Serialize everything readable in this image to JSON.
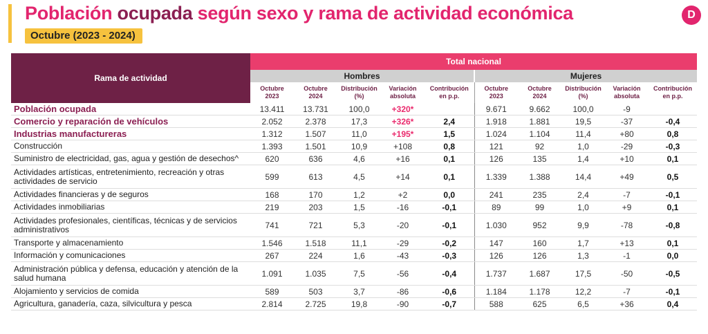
{
  "header": {
    "title_part1": "Población",
    "title_part2": "ocupada",
    "title_part3": "según sexo y rama de actividad económica",
    "subtitle": "Octubre (2023 - 2024)",
    "logo_letter": "D"
  },
  "table": {
    "rama_header": "Rama de actividad",
    "total_header": "Total nacional",
    "hombres_header": "Hombres",
    "mujeres_header": "Mujeres",
    "columns": [
      "Octubre 2023",
      "Octubre 2024",
      "Distribución (%)",
      "Variación absoluta",
      "Contribución en p.p.",
      "Octubre 2023",
      "Octubre 2024",
      "Distribución (%)",
      "Variación absoluta",
      "Contribución en p.p."
    ],
    "rows": [
      {
        "label": "Población ocupada",
        "h": [
          "13.411",
          "13.731",
          "100,0",
          "+320*",
          ""
        ],
        "m": [
          "9.671",
          "9.662",
          "100,0",
          "-9",
          ""
        ]
      },
      {
        "label": "Comercio y reparación de vehículos",
        "h": [
          "2.052",
          "2.378",
          "17,3",
          "+326*",
          "2,4"
        ],
        "m": [
          "1.918",
          "1.881",
          "19,5",
          "-37",
          "-0,4"
        ]
      },
      {
        "label": "Industrias manufactureras",
        "h": [
          "1.312",
          "1.507",
          "11,0",
          "+195*",
          "1,5"
        ],
        "m": [
          "1.024",
          "1.104",
          "11,4",
          "+80",
          "0,8"
        ]
      },
      {
        "label": "Construcción",
        "h": [
          "1.393",
          "1.501",
          "10,9",
          "+108",
          "0,8"
        ],
        "m": [
          "121",
          "92",
          "1,0",
          "-29",
          "-0,3"
        ]
      },
      {
        "label": "Suministro de electricidad, gas, agua y gestión de desechos^",
        "h": [
          "620",
          "636",
          "4,6",
          "+16",
          "0,1"
        ],
        "m": [
          "126",
          "135",
          "1,4",
          "+10",
          "0,1"
        ]
      },
      {
        "label": "Actividades artísticas, entretenimiento, recreación y otras actividades de servicio",
        "h": [
          "599",
          "613",
          "4,5",
          "+14",
          "0,1"
        ],
        "m": [
          "1.339",
          "1.388",
          "14,4",
          "+49",
          "0,5"
        ]
      },
      {
        "label": "Actividades financieras y de seguros",
        "h": [
          "168",
          "170",
          "1,2",
          "+2",
          "0,0"
        ],
        "m": [
          "241",
          "235",
          "2,4",
          "-7",
          "-0,1"
        ]
      },
      {
        "label": "Actividades inmobiliarias",
        "h": [
          "219",
          "203",
          "1,5",
          "-16",
          "-0,1"
        ],
        "m": [
          "89",
          "99",
          "1,0",
          "+9",
          "0,1"
        ]
      },
      {
        "label": "Actividades profesionales, científicas, técnicas y de servicios administrativos",
        "h": [
          "741",
          "721",
          "5,3",
          "-20",
          "-0,1"
        ],
        "m": [
          "1.030",
          "952",
          "9,9",
          "-78",
          "-0,8"
        ]
      },
      {
        "label": "Transporte y almacenamiento",
        "h": [
          "1.546",
          "1.518",
          "11,1",
          "-29",
          "-0,2"
        ],
        "m": [
          "147",
          "160",
          "1,7",
          "+13",
          "0,1"
        ]
      },
      {
        "label": "Información y comunicaciones",
        "h": [
          "267",
          "224",
          "1,6",
          "-43",
          "-0,3"
        ],
        "m": [
          "126",
          "126",
          "1,3",
          "-1",
          "0,0"
        ]
      },
      {
        "label": "Administración pública y defensa, educación y atención de la salud humana",
        "h": [
          "1.091",
          "1.035",
          "7,5",
          "-56",
          "-0,4"
        ],
        "m": [
          "1.737",
          "1.687",
          "17,5",
          "-50",
          "-0,5"
        ]
      },
      {
        "label": "Alojamiento y servicios de comida",
        "h": [
          "589",
          "503",
          "3,7",
          "-86",
          "-0,6"
        ],
        "m": [
          "1.184",
          "1.178",
          "12,2",
          "-7",
          "-0,1"
        ]
      },
      {
        "label": "Agricultura, ganadería, caza, silvicultura y pesca",
        "h": [
          "2.814",
          "2.725",
          "19,8",
          "-90",
          "-0,7"
        ],
        "m": [
          "588",
          "625",
          "6,5",
          "+36",
          "0,4"
        ]
      }
    ]
  },
  "colors": {
    "title_pink": "#e2256e",
    "title_dark": "#8b1f52",
    "accent_yellow": "#f6c23e",
    "header_maroon": "#6e2146",
    "header_pink": "#ea3d6d"
  }
}
